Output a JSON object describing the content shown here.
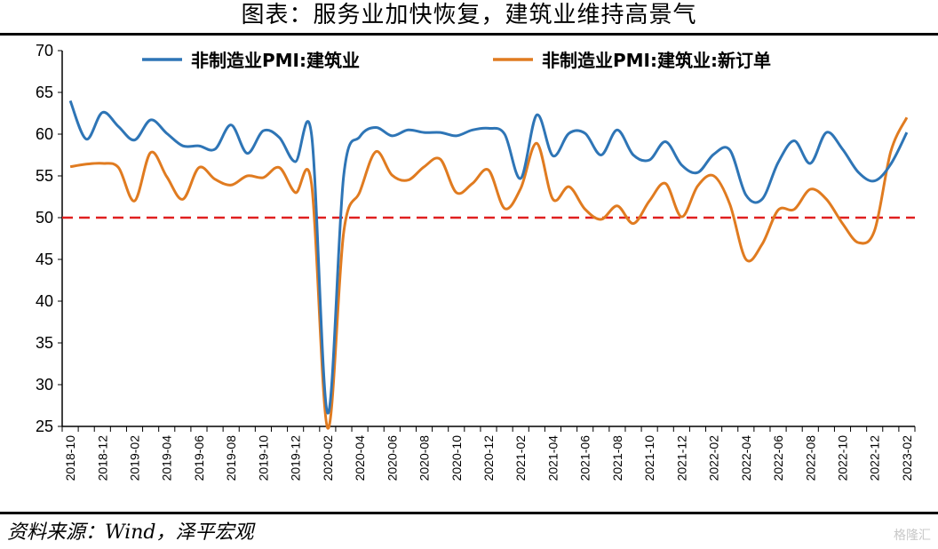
{
  "header": {
    "title": "图表：服务业加快恢复，建筑业维持高景气"
  },
  "footer": {
    "source": "资料来源：Wind，泽平宏观",
    "watermark": "格隆汇"
  },
  "chart_data": {
    "type": "line",
    "title": "图表：服务业加快恢复，建筑业维持高景气",
    "ylim": [
      25,
      70
    ],
    "yticks": [
      25,
      30,
      35,
      40,
      45,
      50,
      55,
      60,
      65,
      70
    ],
    "xtick_labels": [
      "2018-10",
      "2018-12",
      "2019-02",
      "2019-04",
      "2019-06",
      "2019-08",
      "2019-10",
      "2019-12",
      "2020-02",
      "2020-04",
      "2020-06",
      "2020-08",
      "2020-10",
      "2020-12",
      "2021-02",
      "2021-04",
      "2021-06",
      "2021-08",
      "2021-10",
      "2021-12",
      "2022-02",
      "2022-04",
      "2022-06",
      "2022-08",
      "2022-10",
      "2022-12",
      "2023-02"
    ],
    "categories": [
      "2018-10",
      "2018-11",
      "2018-12",
      "2019-01",
      "2019-02",
      "2019-03",
      "2019-04",
      "2019-05",
      "2019-06",
      "2019-07",
      "2019-08",
      "2019-09",
      "2019-10",
      "2019-11",
      "2019-12",
      "2020-01",
      "2020-02",
      "2020-03",
      "2020-04",
      "2020-05",
      "2020-06",
      "2020-07",
      "2020-08",
      "2020-09",
      "2020-10",
      "2020-11",
      "2020-12",
      "2021-01",
      "2021-02",
      "2021-03",
      "2021-04",
      "2021-05",
      "2021-06",
      "2021-07",
      "2021-08",
      "2021-09",
      "2021-10",
      "2021-11",
      "2021-12",
      "2022-01",
      "2022-02",
      "2022-03",
      "2022-04",
      "2022-05",
      "2022-06",
      "2022-07",
      "2022-08",
      "2022-09",
      "2022-10",
      "2022-11",
      "2022-12",
      "2023-01",
      "2023-02"
    ],
    "series": [
      {
        "name": "非制造业PMI:建筑业",
        "color": "#2e75b6",
        "values": [
          64.0,
          59.4,
          62.6,
          60.9,
          59.3,
          61.7,
          60.1,
          58.6,
          58.6,
          58.2,
          61.1,
          57.7,
          60.4,
          59.6,
          56.7,
          59.9,
          26.6,
          55.1,
          59.7,
          60.8,
          59.8,
          60.5,
          60.2,
          60.2,
          59.8,
          60.5,
          60.7,
          60.0,
          54.7,
          62.3,
          57.4,
          60.1,
          60.1,
          57.5,
          60.5,
          57.5,
          56.9,
          59.1,
          56.3,
          55.4,
          57.6,
          58.1,
          52.7,
          52.2,
          56.6,
          59.2,
          56.5,
          60.2,
          58.2,
          55.4,
          54.4,
          56.4,
          60.2
        ]
      },
      {
        "name": "非制造业PMI:建筑业:新订单",
        "color": "#e07b20",
        "values": [
          56.1,
          56.4,
          56.5,
          56.0,
          52.0,
          57.8,
          54.9,
          52.2,
          56.0,
          54.6,
          53.9,
          55.0,
          54.8,
          56.0,
          53.0,
          54.0,
          24.8,
          48.3,
          53.1,
          57.9,
          55.1,
          54.5,
          56.1,
          57.0,
          53.0,
          54.1,
          55.7,
          51.1,
          53.5,
          58.9,
          52.2,
          53.7,
          51.0,
          49.8,
          51.4,
          49.3,
          52.0,
          54.1,
          50.1,
          53.8,
          55.0,
          51.6,
          45.0,
          46.8,
          50.9,
          51.0,
          53.4,
          52.2,
          49.3,
          47.0,
          48.5,
          57.9,
          62.0
        ]
      }
    ],
    "reference_line": {
      "value": 50,
      "color": "#e02020",
      "style": "dashed"
    },
    "grid": false,
    "legend_position": "top"
  }
}
